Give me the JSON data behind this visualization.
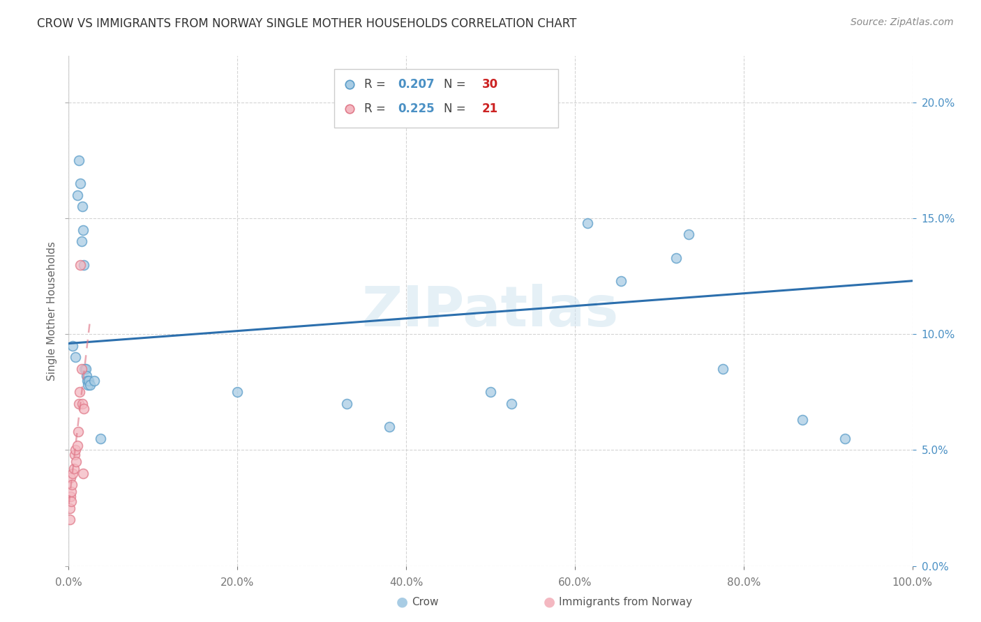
{
  "title": "CROW VS IMMIGRANTS FROM NORWAY SINGLE MOTHER HOUSEHOLDS CORRELATION CHART",
  "source": "Source: ZipAtlas.com",
  "ylabel": "Single Mother Households",
  "xlim": [
    0,
    1.0
  ],
  "ylim": [
    0,
    0.22
  ],
  "x_ticks": [
    0.0,
    0.2,
    0.4,
    0.6,
    0.8,
    1.0
  ],
  "y_ticks": [
    0.0,
    0.05,
    0.1,
    0.15,
    0.2
  ],
  "background_color": "#ffffff",
  "watermark": "ZIPatlas",
  "crow_color": "#a8cce4",
  "norway_color": "#f4b8c1",
  "crow_edge_color": "#5b9dc9",
  "norway_edge_color": "#e07a8a",
  "blue_line_color": "#2c6fad",
  "pink_line_color": "#e07a8a",
  "crow_R": 0.207,
  "crow_N": 30,
  "norway_R": 0.225,
  "norway_N": 21,
  "crow_x": [
    0.005,
    0.008,
    0.01,
    0.012,
    0.014,
    0.015,
    0.016,
    0.017,
    0.018,
    0.019,
    0.02,
    0.021,
    0.022,
    0.023,
    0.024,
    0.025,
    0.03,
    0.038,
    0.2,
    0.33,
    0.38,
    0.5,
    0.525,
    0.615,
    0.655,
    0.72,
    0.735,
    0.775,
    0.87,
    0.92
  ],
  "crow_y": [
    0.095,
    0.09,
    0.16,
    0.175,
    0.165,
    0.14,
    0.155,
    0.145,
    0.13,
    0.085,
    0.085,
    0.082,
    0.08,
    0.078,
    0.08,
    0.078,
    0.08,
    0.055,
    0.075,
    0.07,
    0.06,
    0.075,
    0.07,
    0.148,
    0.123,
    0.133,
    0.143,
    0.085,
    0.063,
    0.055
  ],
  "norway_x": [
    0.001,
    0.001,
    0.002,
    0.002,
    0.003,
    0.003,
    0.004,
    0.005,
    0.006,
    0.007,
    0.008,
    0.009,
    0.01,
    0.011,
    0.012,
    0.013,
    0.014,
    0.015,
    0.016,
    0.017,
    0.018
  ],
  "norway_y": [
    0.025,
    0.02,
    0.038,
    0.03,
    0.028,
    0.032,
    0.035,
    0.04,
    0.042,
    0.048,
    0.05,
    0.045,
    0.052,
    0.058,
    0.07,
    0.075,
    0.13,
    0.085,
    0.07,
    0.04,
    0.068
  ],
  "crow_trend_x": [
    0.0,
    1.0
  ],
  "crow_trend_y": [
    0.096,
    0.123
  ],
  "norway_trend_x": [
    -0.002,
    0.025
  ],
  "norway_trend_y": [
    0.02,
    0.105
  ],
  "marker_size": 100,
  "legend_R_color": "#4a90c4",
  "legend_N_color": "#cc2222",
  "legend_label_color": "#444444"
}
